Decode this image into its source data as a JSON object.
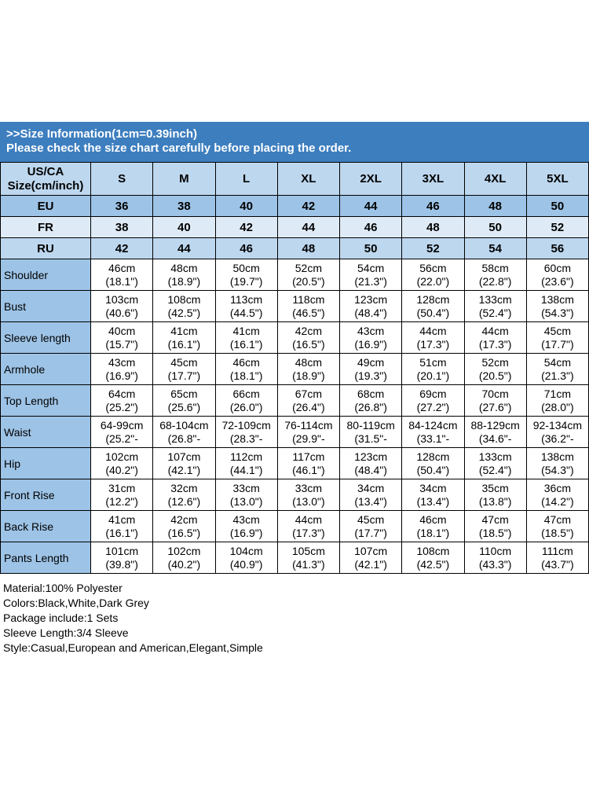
{
  "banner": {
    "line1": ">>Size Information(1cm=0.39inch)",
    "line2": "Please check the size chart carefully before placing the order."
  },
  "table": {
    "header": {
      "label": "US/CA\nSize(cm/inch)",
      "sizes": [
        "S",
        "M",
        "L",
        "XL",
        "2XL",
        "3XL",
        "4XL",
        "5XL"
      ]
    },
    "region_rows": [
      {
        "label": "EU",
        "values": [
          "36",
          "38",
          "40",
          "42",
          "44",
          "46",
          "48",
          "50"
        ]
      },
      {
        "label": "FR",
        "values": [
          "38",
          "40",
          "42",
          "44",
          "46",
          "48",
          "50",
          "52"
        ]
      },
      {
        "label": "RU",
        "values": [
          "42",
          "44",
          "46",
          "48",
          "50",
          "52",
          "54",
          "56"
        ]
      }
    ],
    "measure_rows": [
      {
        "label": "Shoulder",
        "values": [
          "46cm\n(18.1\")",
          "48cm\n(18.9\")",
          "50cm\n(19.7\")",
          "52cm\n(20.5\")",
          "54cm\n(21.3\")",
          "56cm\n(22.0\")",
          "58cm\n(22.8\")",
          "60cm\n(23.6\")"
        ]
      },
      {
        "label": "Bust",
        "values": [
          "103cm\n(40.6\")",
          "108cm\n(42.5\")",
          "113cm\n(44.5\")",
          "118cm\n(46.5\")",
          "123cm\n(48.4\")",
          "128cm\n(50.4\")",
          "133cm\n(52.4\")",
          "138cm\n(54.3\")"
        ]
      },
      {
        "label": "Sleeve length",
        "values": [
          "40cm\n(15.7\")",
          "41cm\n(16.1\")",
          "41cm\n(16.1\")",
          "42cm\n(16.5\")",
          "43cm\n(16.9\")",
          "44cm\n(17.3\")",
          "44cm\n(17.3\")",
          "45cm\n(17.7\")"
        ]
      },
      {
        "label": "Armhole",
        "values": [
          "43cm\n(16.9\")",
          "45cm\n(17.7\")",
          "46cm\n(18.1\")",
          "48cm\n(18.9\")",
          "49cm\n(19.3\")",
          "51cm\n(20.1\")",
          "52cm\n(20.5\")",
          "54cm\n(21.3\")"
        ]
      },
      {
        "label": "Top Length",
        "values": [
          "64cm\n(25.2\")",
          "65cm\n(25.6\")",
          "66cm\n(26.0\")",
          "67cm\n(26.4\")",
          "68cm\n(26.8\")",
          "69cm\n(27.2\")",
          "70cm\n(27.6\")",
          "71cm\n(28.0\")"
        ]
      },
      {
        "label": "Waist",
        "values": [
          "64-99cm\n(25.2\"-",
          "68-104cm\n(26.8\"-",
          "72-109cm\n(28.3\"-",
          "76-114cm\n(29.9\"-",
          "80-119cm\n(31.5\"-",
          "84-124cm\n(33.1\"-",
          "88-129cm\n(34.6\"-",
          "92-134cm\n(36.2\"-"
        ]
      },
      {
        "label": "Hip",
        "values": [
          "102cm\n(40.2\")",
          "107cm\n(42.1\")",
          "112cm\n(44.1\")",
          "117cm\n(46.1\")",
          "123cm\n(48.4\")",
          "128cm\n(50.4\")",
          "133cm\n(52.4\")",
          "138cm\n(54.3\")"
        ]
      },
      {
        "label": "Front Rise",
        "values": [
          "31cm\n(12.2\")",
          "32cm\n(12.6\")",
          "33cm\n(13.0\")",
          "33cm\n(13.0\")",
          "34cm\n(13.4\")",
          "34cm\n(13.4\")",
          "35cm\n(13.8\")",
          "36cm\n(14.2\")"
        ]
      },
      {
        "label": "Back Rise",
        "values": [
          "41cm\n(16.1\")",
          "42cm\n(16.5\")",
          "43cm\n(16.9\")",
          "44cm\n(17.3\")",
          "45cm\n(17.7\")",
          "46cm\n(18.1\")",
          "47cm\n(18.5\")",
          "47cm\n(18.5\")"
        ]
      },
      {
        "label": "Pants Length",
        "values": [
          "101cm\n(39.8\")",
          "102cm\n(40.2\")",
          "104cm\n(40.9\")",
          "105cm\n(41.3\")",
          "107cm\n(42.1\")",
          "108cm\n(42.5\")",
          "110cm\n(43.3\")",
          "111cm\n(43.7\")"
        ]
      }
    ]
  },
  "footer": {
    "lines": [
      "Material:100% Polyester",
      "Colors:Black,White,Dark Grey",
      "Package include:1 Sets",
      "Sleeve Length:3/4 Sleeve",
      "Style:Casual,European and American,Elegant,Simple"
    ]
  },
  "colors": {
    "banner_bg": "#3D7EBF",
    "banner_text": "#FFFFFF",
    "header_row_bg": "#BDD7EE",
    "eu_row_bg": "#9DC3E6",
    "fr_row_bg": "#DEEBF7",
    "ru_row_bg": "#BDD7EE",
    "label_column_bg": "#9DC3E6",
    "cell_bg": "#FFFFFF",
    "grid_border": "#000000"
  }
}
